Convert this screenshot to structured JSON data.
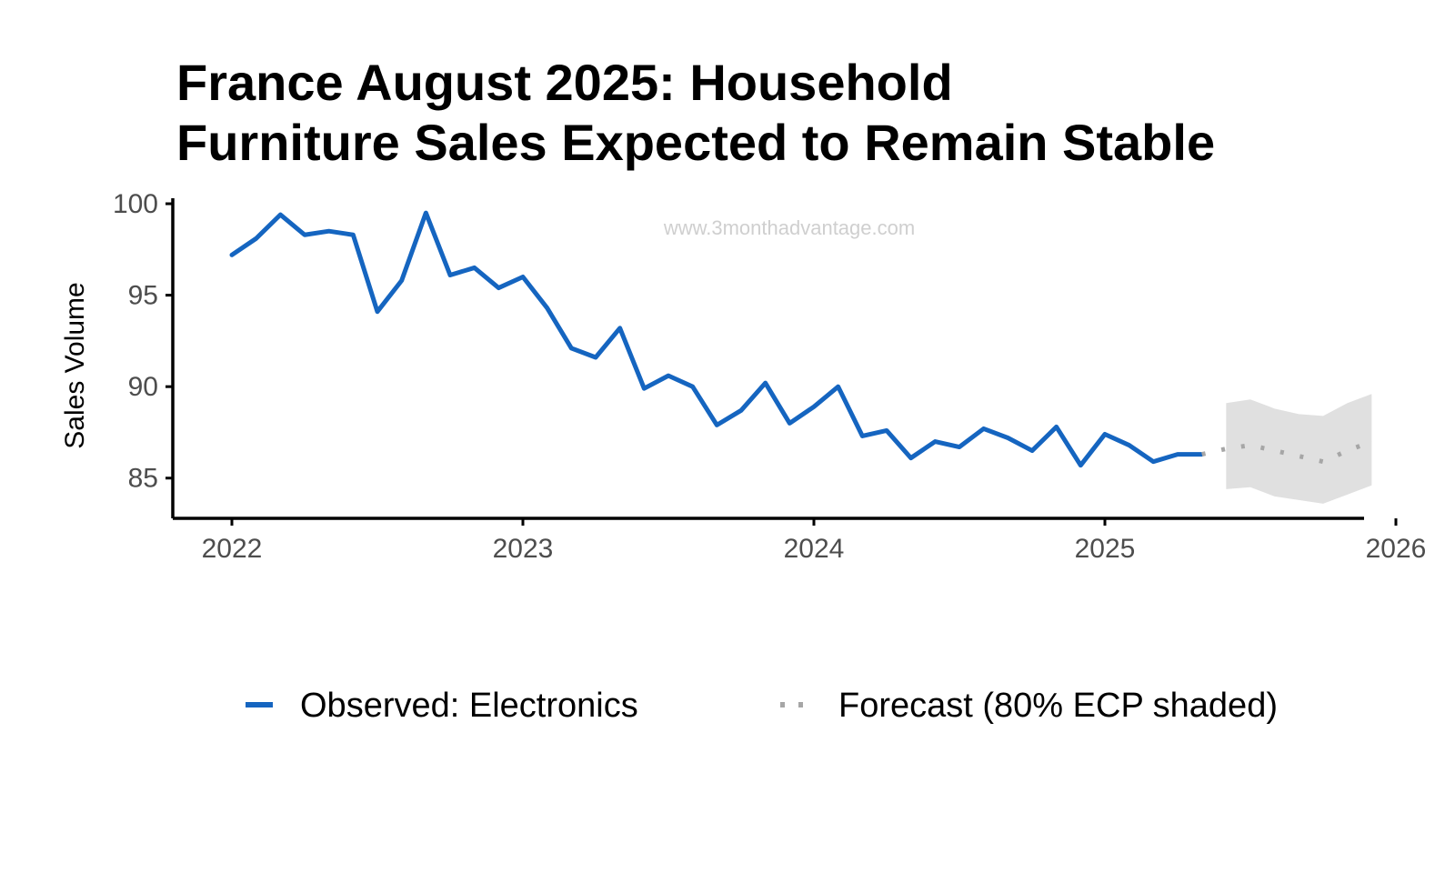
{
  "chart_data": {
    "type": "line",
    "title_lines": [
      "France August 2025: Household",
      "Furniture Sales Expected to Remain Stable"
    ],
    "xlabel": "",
    "ylabel": "Sales Volume",
    "watermark": "www.3monthadvantage.com",
    "xlim": [
      2021.8,
      2026.0
    ],
    "ylim": [
      82.8,
      100.3
    ],
    "x_ticks": [
      {
        "value": 2022,
        "label": "2022"
      },
      {
        "value": 2023,
        "label": "2023"
      },
      {
        "value": 2024,
        "label": "2024"
      },
      {
        "value": 2025,
        "label": "2025"
      },
      {
        "value": 2026,
        "label": "2026"
      }
    ],
    "y_ticks": [
      {
        "value": 85,
        "label": "85"
      },
      {
        "value": 90,
        "label": "90"
      },
      {
        "value": 95,
        "label": "95"
      },
      {
        "value": 100,
        "label": "100"
      }
    ],
    "grid": false,
    "legend_position": "bottom",
    "series": [
      {
        "name": "Observed: Electronics",
        "style": "solid",
        "color": "#1565c0",
        "points": [
          [
            "2022-01",
            97.2
          ],
          [
            "2022-02",
            98.1
          ],
          [
            "2022-03",
            99.4
          ],
          [
            "2022-04",
            98.3
          ],
          [
            "2022-05",
            98.5
          ],
          [
            "2022-06",
            98.3
          ],
          [
            "2022-07",
            94.1
          ],
          [
            "2022-08",
            95.8
          ],
          [
            "2022-09",
            99.5
          ],
          [
            "2022-10",
            96.1
          ],
          [
            "2022-11",
            96.5
          ],
          [
            "2022-12",
            95.4
          ],
          [
            "2023-01",
            96.0
          ],
          [
            "2023-02",
            94.3
          ],
          [
            "2023-03",
            92.1
          ],
          [
            "2023-04",
            91.6
          ],
          [
            "2023-05",
            93.2
          ],
          [
            "2023-06",
            89.9
          ],
          [
            "2023-07",
            90.6
          ],
          [
            "2023-08",
            90.0
          ],
          [
            "2023-09",
            87.9
          ],
          [
            "2023-10",
            88.7
          ],
          [
            "2023-11",
            90.2
          ],
          [
            "2023-12",
            88.0
          ],
          [
            "2024-01",
            88.9
          ],
          [
            "2024-02",
            90.0
          ],
          [
            "2024-03",
            87.3
          ],
          [
            "2024-04",
            87.6
          ],
          [
            "2024-05",
            86.1
          ],
          [
            "2024-06",
            87.0
          ],
          [
            "2024-07",
            86.7
          ],
          [
            "2024-08",
            87.7
          ],
          [
            "2024-09",
            87.2
          ],
          [
            "2024-10",
            86.5
          ],
          [
            "2024-11",
            87.8
          ],
          [
            "2024-12",
            85.7
          ],
          [
            "2025-01",
            87.4
          ],
          [
            "2025-02",
            86.8
          ],
          [
            "2025-03",
            85.9
          ],
          [
            "2025-04",
            86.3
          ],
          [
            "2025-05",
            86.3
          ]
        ]
      },
      {
        "name": "Forecast (80% ECP shaded)",
        "style": "dotted",
        "color": "#a6a6a6",
        "band_color": "#e0e0e0",
        "points": [
          [
            "2025-05",
            86.3
          ],
          [
            "2025-06",
            86.6
          ],
          [
            "2025-07",
            86.8
          ],
          [
            "2025-08",
            86.5
          ],
          [
            "2025-09",
            86.2
          ],
          [
            "2025-10",
            85.9
          ],
          [
            "2025-11",
            86.5
          ],
          [
            "2025-12",
            87.0
          ]
        ],
        "band": [
          [
            "2025-06",
            84.4,
            89.1
          ],
          [
            "2025-07",
            84.5,
            89.3
          ],
          [
            "2025-08",
            84.0,
            88.8
          ],
          [
            "2025-09",
            83.8,
            88.5
          ],
          [
            "2025-10",
            83.6,
            88.4
          ],
          [
            "2025-11",
            84.1,
            89.1
          ],
          [
            "2025-12",
            84.6,
            89.6
          ]
        ]
      }
    ]
  }
}
